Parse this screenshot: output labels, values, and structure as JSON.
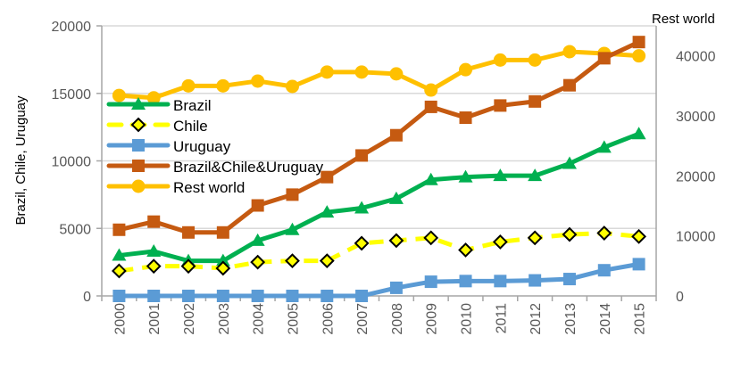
{
  "chart_data": {
    "type": "line",
    "title": "",
    "xlabel": "",
    "ylabel": "Brazil, Chile, Uruguay",
    "y2label": "Rest world",
    "categories": [
      "2000",
      "2001",
      "2002",
      "2003",
      "2004",
      "2005",
      "2006",
      "2007",
      "2008",
      "2009",
      "2010",
      "2011",
      "2012",
      "2013",
      "2014",
      "2015"
    ],
    "ylim": [
      0,
      20000
    ],
    "yticks": [
      "0",
      "5000",
      "10000",
      "15000",
      "20000"
    ],
    "y2lim": [
      0,
      45000
    ],
    "y2ticks": [
      "0",
      "10000",
      "20000",
      "30000",
      "40000"
    ],
    "grid": true,
    "legend_position": "upper-left inside",
    "series": [
      {
        "name": "Brazil",
        "axis": "left",
        "color": "#00B050",
        "marker": "triangle",
        "dash": false,
        "values": [
          3000,
          3300,
          2600,
          2600,
          4100,
          4900,
          6200,
          6500,
          7200,
          8600,
          8800,
          8900,
          8900,
          9800,
          11000,
          12000
        ]
      },
      {
        "name": "Chile",
        "axis": "left",
        "color": "#FFFF00",
        "marker": "diamond",
        "dash": true,
        "values": [
          1850,
          2200,
          2200,
          2050,
          2500,
          2600,
          2600,
          3900,
          4100,
          4300,
          3400,
          4000,
          4300,
          4550,
          4650,
          4400
        ]
      },
      {
        "name": "Uruguay",
        "axis": "left",
        "color": "#5B9BD5",
        "marker": "square",
        "dash": false,
        "values": [
          0,
          0,
          0,
          0,
          0,
          0,
          0,
          0,
          600,
          1050,
          1100,
          1100,
          1150,
          1250,
          1900,
          2350
        ]
      },
      {
        "name": "Brazil&Chile&Uruguay",
        "axis": "left",
        "color": "#C55A11",
        "marker": "square",
        "dash": false,
        "values": [
          4900,
          5500,
          4700,
          4700,
          6700,
          7500,
          8800,
          10400,
          11900,
          14000,
          13200,
          14100,
          14400,
          15600,
          17600,
          18800
        ]
      },
      {
        "name": "Rest world",
        "axis": "right",
        "color": "#FFC000",
        "marker": "circle",
        "dash": false,
        "values": [
          33400,
          33000,
          35000,
          35000,
          35800,
          34900,
          37300,
          37300,
          37000,
          34300,
          37700,
          39300,
          39300,
          40700,
          40400,
          40000
        ]
      }
    ]
  }
}
